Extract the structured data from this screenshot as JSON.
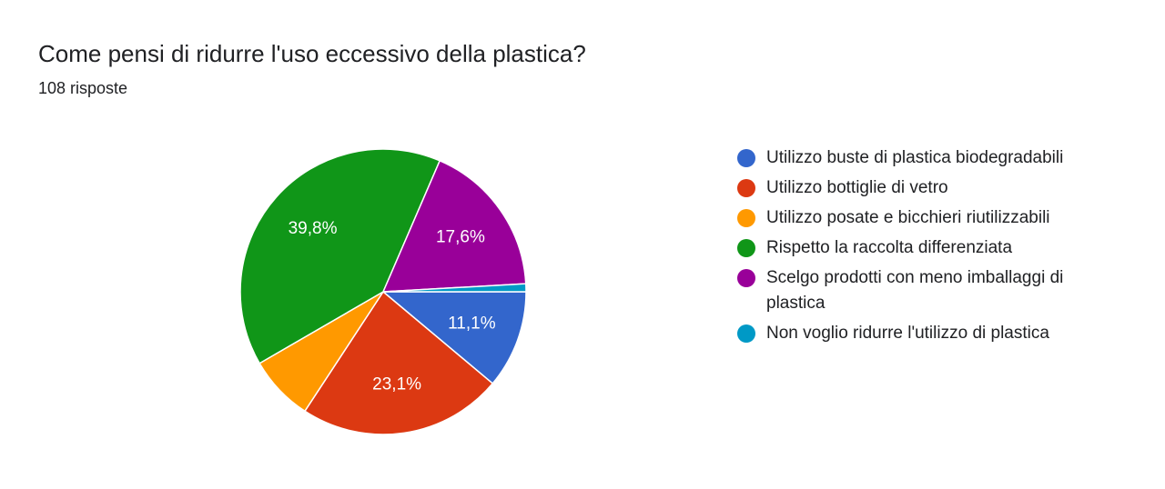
{
  "chart_data": {
    "type": "pie",
    "title": "Come pensi di ridurre l'uso eccessivo della plastica?",
    "subtitle": "108 risposte",
    "categories": [
      "Utilizzo buste di plastica biodegradabili",
      "Utilizzo bottiglie di vetro",
      "Utilizzo posate e bicchieri riutilizzabili",
      "Rispetto la raccolta differenziata",
      "Scelgo prodotti con meno imballaggi di plastica",
      "Non voglio ridurre l'utilizzo di plastica"
    ],
    "values": [
      11.1,
      23.1,
      7.4,
      39.8,
      17.6,
      0.9
    ],
    "value_labels": [
      "11,1%",
      "23,1%",
      null,
      "39,8%",
      "17,6%",
      null
    ],
    "colors": [
      "#3366cc",
      "#dc3912",
      "#ff9900",
      "#109618",
      "#990099",
      "#0099c6"
    ]
  }
}
